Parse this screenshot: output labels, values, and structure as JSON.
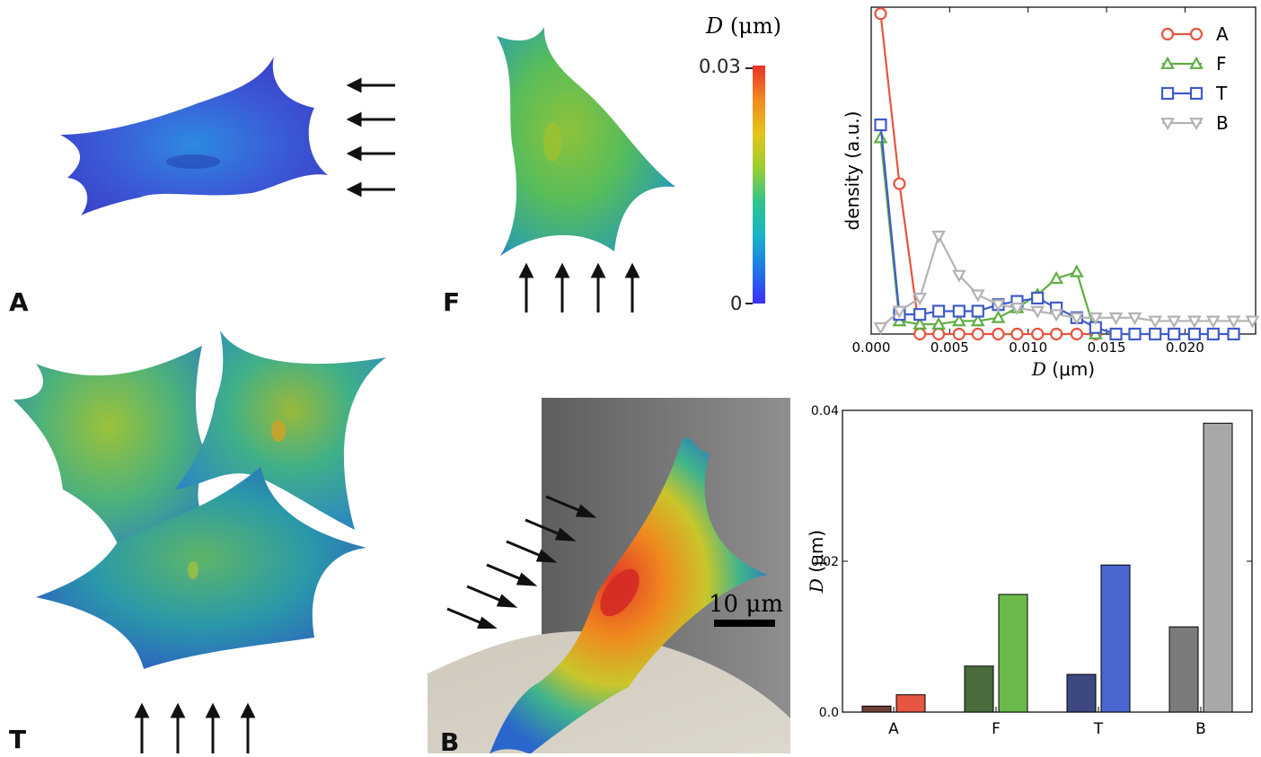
{
  "panels": {
    "A": {
      "label": "A"
    },
    "F": {
      "label": "F"
    },
    "T": {
      "label": "T"
    },
    "B": {
      "label": "B"
    }
  },
  "colorbar": {
    "title_var": "D",
    "title_unit": "(μm)",
    "max_label": "0.03",
    "min_label": "0",
    "colors": [
      "#3b2cff",
      "#1e78e6",
      "#17b5c8",
      "#31c48a",
      "#9ccd32",
      "#e5c31a",
      "#f08a1e",
      "#e8322a"
    ]
  },
  "scale_bar": {
    "label": "10 μm"
  },
  "chart_data": [
    {
      "type": "line",
      "title": "",
      "xlabel_var": "D",
      "xlabel_unit": "(μm)",
      "ylabel": "density (a.u.)",
      "xlim": [
        0,
        0.0245
      ],
      "ylim": [
        0,
        1.0
      ],
      "x_ticks": [
        0.0,
        0.005,
        0.01,
        0.015,
        0.02
      ],
      "x_tick_labels": [
        "0.000",
        "0.005",
        "0.010",
        "0.015",
        "0.020"
      ],
      "legend_position": "top-right",
      "series": [
        {
          "name": "A",
          "marker": "circle",
          "color": "#e5553f",
          "x": [
            0.0006,
            0.0018,
            0.0031,
            0.0043,
            0.0056,
            0.0068,
            0.0081,
            0.0093,
            0.0106,
            0.0118,
            0.0131,
            0.0143
          ],
          "y": [
            0.98,
            0.46,
            0.0,
            0.0,
            0.0,
            0.0,
            0.0,
            0.0,
            0.0,
            0.0,
            0.0,
            0.0
          ]
        },
        {
          "name": "F",
          "marker": "triangle-up",
          "color": "#5fae44",
          "x": [
            0.0006,
            0.0018,
            0.0031,
            0.0043,
            0.0056,
            0.0068,
            0.0081,
            0.0093,
            0.0106,
            0.0118,
            0.0131,
            0.0143
          ],
          "y": [
            0.6,
            0.04,
            0.03,
            0.03,
            0.04,
            0.04,
            0.05,
            0.08,
            0.12,
            0.17,
            0.19,
            0.0
          ]
        },
        {
          "name": "T",
          "marker": "square",
          "color": "#3f5bc9",
          "x": [
            0.0006,
            0.0018,
            0.0031,
            0.0043,
            0.0056,
            0.0068,
            0.0081,
            0.0093,
            0.0106,
            0.0118,
            0.0131,
            0.0143,
            0.0156,
            0.0168,
            0.0181,
            0.0193,
            0.0206,
            0.0218,
            0.0231
          ],
          "y": [
            0.64,
            0.06,
            0.06,
            0.07,
            0.07,
            0.07,
            0.09,
            0.1,
            0.11,
            0.08,
            0.05,
            0.02,
            0.0,
            0.0,
            0.0,
            0.0,
            0.0,
            0.0,
            0.0
          ]
        },
        {
          "name": "B",
          "marker": "triangle-down",
          "color": "#b3b3b3",
          "x": [
            0.0006,
            0.0018,
            0.0031,
            0.0043,
            0.0056,
            0.0068,
            0.0081,
            0.0093,
            0.0106,
            0.0118,
            0.0131,
            0.0143,
            0.0156,
            0.0168,
            0.0181,
            0.0193,
            0.0206,
            0.0218,
            0.0231,
            0.0243
          ],
          "y": [
            0.02,
            0.07,
            0.11,
            0.3,
            0.18,
            0.12,
            0.09,
            0.08,
            0.07,
            0.06,
            0.05,
            0.05,
            0.05,
            0.05,
            0.04,
            0.04,
            0.04,
            0.04,
            0.04,
            0.04
          ]
        }
      ]
    },
    {
      "type": "bar",
      "title": "",
      "xlabel": "",
      "ylabel_var": "D",
      "ylabel_unit": "(μm)",
      "ylim": [
        0,
        0.04
      ],
      "y_ticks": [
        0.0,
        0.02,
        0.04
      ],
      "y_tick_labels": [
        "0.0",
        "0.02",
        "0.04"
      ],
      "categories": [
        "A",
        "F",
        "T",
        "B"
      ],
      "series": [
        {
          "values": [
            0.0008,
            0.0061,
            0.005,
            0.0113
          ],
          "colors": [
            "#6f4038",
            "#4a6b3c",
            "#3d4880",
            "#7b7b7b"
          ]
        },
        {
          "values": [
            0.0023,
            0.0156,
            0.0195,
            0.0383
          ],
          "colors": [
            "#e5553f",
            "#6cb94b",
            "#4a66d0",
            "#a8a8a8"
          ]
        }
      ]
    }
  ]
}
